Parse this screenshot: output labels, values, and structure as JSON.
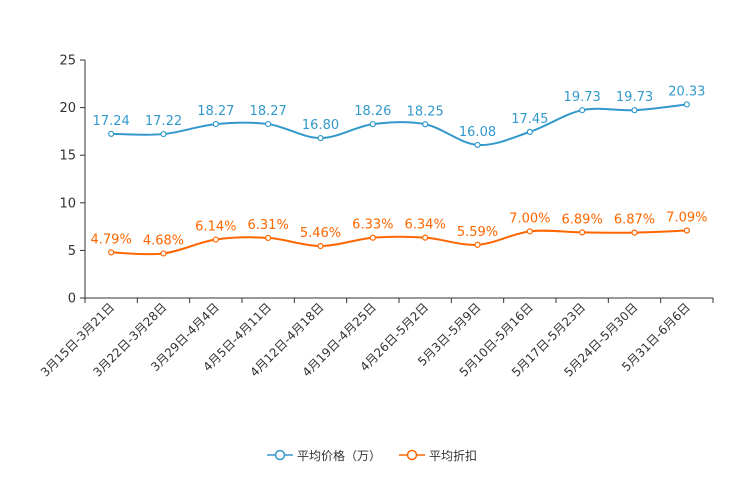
{
  "chart_data": {
    "type": "line",
    "title": "",
    "xlabel": "",
    "ylabel": "",
    "ylim": [
      0,
      25
    ],
    "yticks": [
      0,
      5,
      10,
      15,
      20,
      25
    ],
    "grid": false,
    "legend_position": "bottom",
    "categories": [
      "3月15日-3月21日",
      "3月22日-3月28日",
      "3月29日-4月4日",
      "4月5日-4月11日",
      "4月12日-4月18日",
      "4月19日-4月25日",
      "4月26日-5月2日",
      "5月3日-5月9日",
      "5月10日-5月16日",
      "5月17日-5月23日",
      "5月24日-5月30日",
      "5月31日-6月6日"
    ],
    "series": [
      {
        "name": "平均价格（万）",
        "color": "#3399cc",
        "values": [
          17.24,
          17.22,
          18.27,
          18.27,
          16.8,
          18.26,
          18.25,
          16.08,
          17.45,
          19.73,
          19.73,
          20.33
        ],
        "labels": [
          "17.24",
          "17.22",
          "18.27",
          "18.27",
          "16.80",
          "18.26",
          "18.25",
          "16.08",
          "17.45",
          "19.73",
          "19.73",
          "20.33"
        ]
      },
      {
        "name": "平均折扣",
        "color": "#ff6600",
        "values": [
          4.79,
          4.68,
          6.14,
          6.31,
          5.46,
          6.33,
          6.34,
          5.59,
          7.0,
          6.89,
          6.87,
          7.09
        ],
        "labels": [
          "4.79%",
          "4.68%",
          "6.14%",
          "6.31%",
          "5.46%",
          "6.33%",
          "6.34%",
          "5.59%",
          "7.00%",
          "6.89%",
          "6.87%",
          "7.09%"
        ]
      }
    ]
  }
}
